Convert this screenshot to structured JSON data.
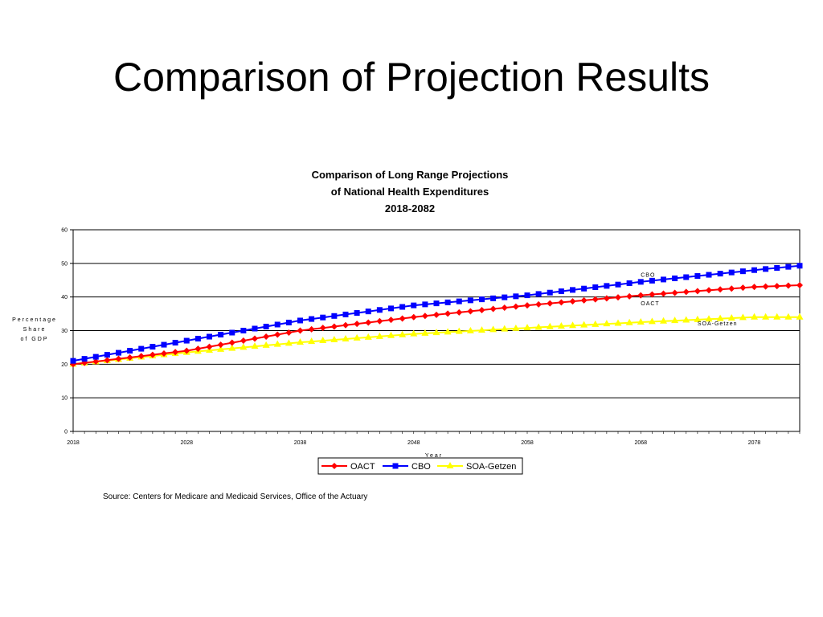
{
  "slide": {
    "title": "Comparison of Projection Results"
  },
  "source": "Source: Centers for Medicare and Medicaid Services, Office of the Actuary",
  "chart_data": {
    "type": "line",
    "title_lines": [
      "Comparison of Long Range Projections",
      "of National Health Expenditures",
      "2018-2082"
    ],
    "ylabel_lines": [
      "Percentage",
      "Share",
      "of GDP"
    ],
    "xlabel": "Year",
    "xlim": [
      2018,
      2082
    ],
    "ylim": [
      0,
      60
    ],
    "x_ticks": [
      2018,
      2028,
      2038,
      2048,
      2058,
      2068,
      2078
    ],
    "y_ticks": [
      0,
      10,
      20,
      30,
      40,
      50,
      60
    ],
    "grid": "horizontal",
    "legend": {
      "placement": "bottom-center",
      "entries": [
        "OACT",
        "CBO",
        "SOA-Getzen"
      ]
    },
    "series": [
      {
        "name": "OACT",
        "color": "#ff0000",
        "marker": "diamond",
        "anchors": [
          [
            2018,
            20.0
          ],
          [
            2028,
            24.0
          ],
          [
            2038,
            30.0
          ],
          [
            2048,
            34.0
          ],
          [
            2058,
            37.5
          ],
          [
            2068,
            40.5
          ],
          [
            2078,
            43.0
          ],
          [
            2082,
            43.5
          ]
        ]
      },
      {
        "name": "CBO",
        "color": "#0000ff",
        "marker": "square",
        "anchors": [
          [
            2018,
            21.0
          ],
          [
            2028,
            27.0
          ],
          [
            2038,
            33.0
          ],
          [
            2048,
            37.5
          ],
          [
            2058,
            40.5
          ],
          [
            2068,
            44.5
          ],
          [
            2078,
            48.0
          ],
          [
            2082,
            49.3
          ]
        ]
      },
      {
        "name": "SOA-Getzen",
        "color": "#ffff00",
        "marker": "triangle",
        "anchors": [
          [
            2018,
            20.0
          ],
          [
            2028,
            23.5
          ],
          [
            2038,
            26.5
          ],
          [
            2048,
            29.0
          ],
          [
            2058,
            30.8
          ],
          [
            2068,
            32.5
          ],
          [
            2078,
            34.0
          ],
          [
            2082,
            34.0
          ]
        ]
      }
    ],
    "annotations": [
      {
        "text": "CBO",
        "x": 2068,
        "y": 46
      },
      {
        "text": "OACT",
        "x": 2068,
        "y": 37.5
      },
      {
        "text": "SOA-Getzen",
        "x": 2073,
        "y": 31.5
      }
    ]
  }
}
